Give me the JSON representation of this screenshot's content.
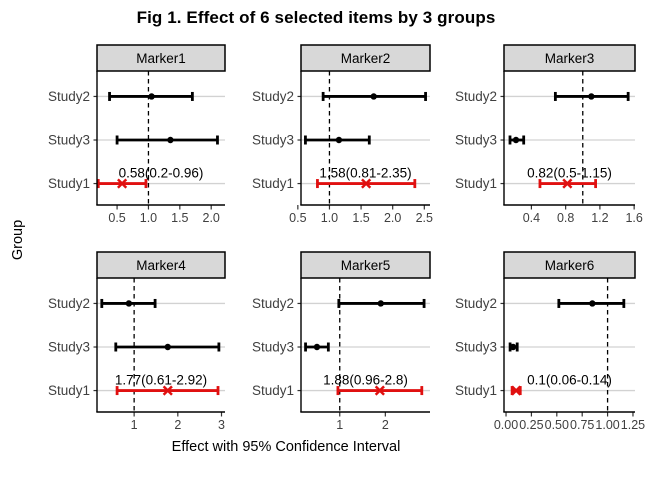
{
  "title": "Fig 1. Effect of 6 selected items by 3 groups",
  "x_axis_title": "Effect with 95% Confidence Interval",
  "y_axis_title": "Group",
  "colors": {
    "default_series": "#000000",
    "highlight_series": "#E01010",
    "strip_background": "#D8D8D8",
    "strip_border": "#000000",
    "axis_line": "#000000",
    "gridline": "#D2D2D2",
    "axis_text": "#404040",
    "annotation_text": "#000000",
    "reference_line": "#000000"
  },
  "chart_data": {
    "type": "scatter",
    "subtype": "forest-plot-small-multiples",
    "layout": "2 rows x 3 columns",
    "rows_top_to_bottom": [
      "Study2",
      "Study3",
      "Study1"
    ],
    "reference_line_x": 1.0,
    "grid": "horizontal-only",
    "legend_position": "none",
    "panels": [
      {
        "name": "Marker1",
        "xlim": [
          0.18,
          2.22
        ],
        "ticks": [
          0.5,
          1.0,
          1.5,
          2.0
        ],
        "tick_labels": [
          "0.5",
          "1.0",
          "1.5",
          "2.0"
        ],
        "points": [
          {
            "study": "Study2",
            "est": 1.05,
            "lo": 0.38,
            "hi": 1.7,
            "series": "default",
            "marker": "circle"
          },
          {
            "study": "Study3",
            "est": 1.35,
            "lo": 0.5,
            "hi": 2.1,
            "series": "default",
            "marker": "circle"
          },
          {
            "study": "Study1",
            "est": 0.58,
            "lo": 0.2,
            "hi": 0.96,
            "series": "highlight",
            "marker": "x",
            "annotation": "0.58(0.2-0.96)"
          }
        ]
      },
      {
        "name": "Marker2",
        "xlim": [
          0.55,
          2.59
        ],
        "ticks": [
          0.5,
          1.0,
          1.5,
          2.0,
          2.5
        ],
        "tick_labels": [
          "0.5",
          "1.0",
          "1.5",
          "2.0",
          "2.5"
        ],
        "points": [
          {
            "study": "Study2",
            "est": 1.7,
            "lo": 0.9,
            "hi": 2.52,
            "series": "default",
            "marker": "circle"
          },
          {
            "study": "Study3",
            "est": 1.15,
            "lo": 0.62,
            "hi": 1.63,
            "series": "default",
            "marker": "circle"
          },
          {
            "study": "Study1",
            "est": 1.58,
            "lo": 0.81,
            "hi": 2.35,
            "series": "highlight",
            "marker": "x",
            "annotation": "1.58(0.81-2.35)"
          }
        ]
      },
      {
        "name": "Marker3",
        "xlim": [
          0.08,
          1.61
        ],
        "ticks": [
          0.4,
          0.8,
          1.2,
          1.6
        ],
        "tick_labels": [
          "0.4",
          "0.8",
          "1.2",
          "1.6"
        ],
        "points": [
          {
            "study": "Study2",
            "est": 1.1,
            "lo": 0.68,
            "hi": 1.53,
            "series": "default",
            "marker": "circle"
          },
          {
            "study": "Study3",
            "est": 0.22,
            "lo": 0.15,
            "hi": 0.31,
            "series": "default",
            "marker": "circle"
          },
          {
            "study": "Study1",
            "est": 0.82,
            "lo": 0.5,
            "hi": 1.15,
            "series": "highlight",
            "marker": "x",
            "annotation": "0.82(0.5-1.15)"
          }
        ]
      },
      {
        "name": "Marker4",
        "xlim": [
          0.15,
          3.08
        ],
        "ticks": [
          1,
          2,
          3
        ],
        "tick_labels": [
          "1",
          "2",
          "3"
        ],
        "points": [
          {
            "study": "Study2",
            "est": 0.88,
            "lo": 0.26,
            "hi": 1.48,
            "series": "default",
            "marker": "circle"
          },
          {
            "study": "Study3",
            "est": 1.77,
            "lo": 0.58,
            "hi": 2.94,
            "series": "default",
            "marker": "circle"
          },
          {
            "study": "Study1",
            "est": 1.77,
            "lo": 0.61,
            "hi": 2.92,
            "series": "highlight",
            "marker": "x",
            "annotation": "1.77(0.61-2.92)"
          }
        ]
      },
      {
        "name": "Marker5",
        "xlim": [
          0.15,
          2.98
        ],
        "ticks": [
          1,
          2
        ],
        "tick_labels": [
          "1",
          "2"
        ],
        "points": [
          {
            "study": "Study2",
            "est": 1.9,
            "lo": 0.98,
            "hi": 2.85,
            "series": "default",
            "marker": "circle"
          },
          {
            "study": "Study3",
            "est": 0.5,
            "lo": 0.25,
            "hi": 0.75,
            "series": "default",
            "marker": "circle"
          },
          {
            "study": "Study1",
            "est": 1.88,
            "lo": 0.96,
            "hi": 2.8,
            "series": "highlight",
            "marker": "x",
            "annotation": "1.88(0.96-2.8)"
          }
        ]
      },
      {
        "name": "Marker6",
        "xlim": [
          -0.02,
          1.27
        ],
        "ticks": [
          0.0,
          0.25,
          0.5,
          0.75,
          1.0,
          1.25
        ],
        "tick_labels": [
          "0.00",
          "0.25",
          "0.50",
          "0.75",
          "1.00",
          "1.25"
        ],
        "points": [
          {
            "study": "Study2",
            "est": 0.85,
            "lo": 0.52,
            "hi": 1.16,
            "series": "default",
            "marker": "circle"
          },
          {
            "study": "Study3",
            "est": 0.07,
            "lo": 0.04,
            "hi": 0.11,
            "series": "default",
            "marker": "circle"
          },
          {
            "study": "Study1",
            "est": 0.1,
            "lo": 0.06,
            "hi": 0.14,
            "series": "highlight",
            "marker": "x",
            "annotation": "0.1(0.06-0.14)"
          }
        ]
      }
    ]
  }
}
